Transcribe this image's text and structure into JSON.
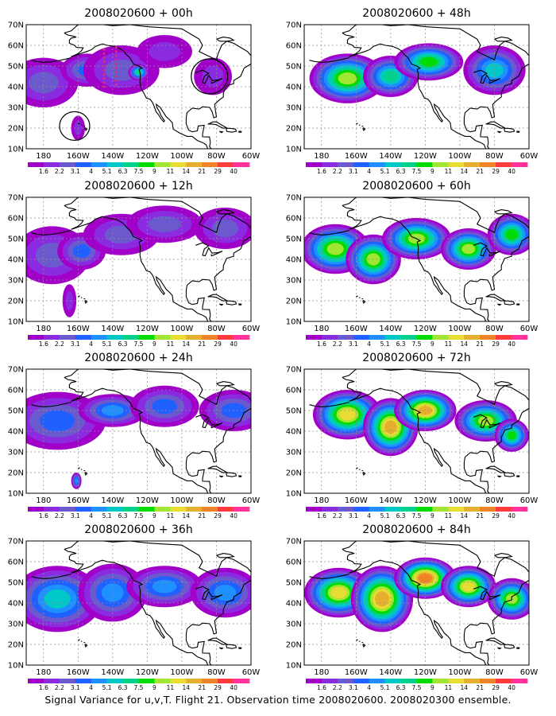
{
  "caption": "Signal Variance for u,v,T. Flight 21. Observation time 2008020600. 2008020300 ensemble.",
  "colorbar": {
    "labels": [
      "1.6",
      "2.2",
      "3.1",
      "4",
      "5.1",
      "6.3",
      "7.5",
      "9",
      "11",
      "14",
      "21",
      "29",
      "40"
    ],
    "colors": [
      "#a000c8",
      "#8a2be2",
      "#6a5acd",
      "#2060ff",
      "#1e90ff",
      "#00c8c8",
      "#00d28c",
      "#00dc00",
      "#a0e632",
      "#e6dc32",
      "#e6af2d",
      "#f08228",
      "#fa3c3c",
      "#ff3399"
    ]
  },
  "map_axes": {
    "x_ticks": [
      "180",
      "160W",
      "140W",
      "120W",
      "100W",
      "80W",
      "60W"
    ],
    "y_ticks": [
      "10N",
      "20N",
      "30N",
      "40N",
      "50N",
      "60N",
      "70N"
    ]
  },
  "chart_data": [
    {
      "type": "heatmap",
      "title": "2008020600 + 00h",
      "lead_hours": 0,
      "max_level_index": 13,
      "xlabels": [
        "180",
        "160W",
        "140W",
        "120W",
        "100W",
        "80W",
        "60W"
      ],
      "ylabels": [
        "10N",
        "20N",
        "30N",
        "40N",
        "50N",
        "60N",
        "70N"
      ],
      "blobs": [
        {
          "lon": -180,
          "lat": 42,
          "rlon": 20,
          "rlat": 12,
          "level": 2
        },
        {
          "lon": -155,
          "lat": 48,
          "rlon": 15,
          "rlat": 8,
          "level": 3
        },
        {
          "lon": -135,
          "lat": 48,
          "rlon": 22,
          "rlat": 12,
          "level": 2
        },
        {
          "lon": -125,
          "lat": 47,
          "rlon": 6,
          "rlat": 4,
          "level": 6
        },
        {
          "lon": -110,
          "lat": 57,
          "rlon": 16,
          "rlat": 8,
          "level": 1
        },
        {
          "lon": -82,
          "lat": 45,
          "rlon": 11,
          "rlat": 9,
          "level": 1
        },
        {
          "lon": -160,
          "lat": 20,
          "rlon": 4,
          "rlat": 6,
          "level": 1
        }
      ]
    },
    {
      "type": "heatmap",
      "title": "2008020600 + 12h",
      "lead_hours": 12,
      "max_level_index": 13,
      "xlabels": [
        "180",
        "160W",
        "140W",
        "120W",
        "100W",
        "80W",
        "60W"
      ],
      "ylabels": [
        "10N",
        "20N",
        "30N",
        "40N",
        "50N",
        "60N",
        "70N"
      ],
      "blobs": [
        {
          "lon": -175,
          "lat": 42,
          "rlon": 22,
          "rlat": 14,
          "level": 2
        },
        {
          "lon": -158,
          "lat": 44,
          "rlon": 14,
          "rlat": 9,
          "level": 3
        },
        {
          "lon": -135,
          "lat": 52,
          "rlon": 22,
          "rlat": 10,
          "level": 2
        },
        {
          "lon": -110,
          "lat": 57,
          "rlon": 22,
          "rlat": 9,
          "level": 2
        },
        {
          "lon": -75,
          "lat": 55,
          "rlon": 18,
          "rlat": 10,
          "level": 2
        },
        {
          "lon": -165,
          "lat": 20,
          "rlon": 4,
          "rlat": 8,
          "level": 1
        }
      ]
    },
    {
      "type": "heatmap",
      "title": "2008020600 + 24h",
      "lead_hours": 24,
      "max_level_index": 13,
      "xlabels": [
        "180",
        "160W",
        "140W",
        "120W",
        "100W",
        "80W",
        "60W"
      ],
      "ylabels": [
        "10N",
        "20N",
        "30N",
        "40N",
        "50N",
        "60N",
        "70N"
      ],
      "blobs": [
        {
          "lon": -172,
          "lat": 45,
          "rlon": 28,
          "rlat": 14,
          "level": 3
        },
        {
          "lon": -140,
          "lat": 50,
          "rlon": 20,
          "rlat": 8,
          "level": 4
        },
        {
          "lon": -110,
          "lat": 52,
          "rlon": 20,
          "rlat": 10,
          "level": 3
        },
        {
          "lon": -70,
          "lat": 50,
          "rlon": 20,
          "rlat": 10,
          "level": 3
        },
        {
          "lon": -161,
          "lat": 16,
          "rlon": 3,
          "rlat": 4,
          "level": 4
        }
      ]
    },
    {
      "type": "heatmap",
      "title": "2008020600 + 36h",
      "lead_hours": 36,
      "max_level_index": 13,
      "xlabels": [
        "180",
        "160W",
        "140W",
        "120W",
        "100W",
        "80W",
        "60W"
      ],
      "ylabels": [
        "10N",
        "20N",
        "30N",
        "40N",
        "50N",
        "60N",
        "70N"
      ],
      "blobs": [
        {
          "lon": -172,
          "lat": 42,
          "rlon": 26,
          "rlat": 16,
          "level": 5
        },
        {
          "lon": -140,
          "lat": 45,
          "rlon": 20,
          "rlat": 14,
          "level": 4
        },
        {
          "lon": -110,
          "lat": 48,
          "rlon": 22,
          "rlat": 10,
          "level": 4
        },
        {
          "lon": -75,
          "lat": 45,
          "rlon": 20,
          "rlat": 12,
          "level": 4
        }
      ]
    },
    {
      "type": "heatmap",
      "title": "2008020600 + 48h",
      "lead_hours": 48,
      "max_level_index": 13,
      "xlabels": [
        "180",
        "160W",
        "140W",
        "120W",
        "100W",
        "80W",
        "60W"
      ],
      "ylabels": [
        "10N",
        "20N",
        "30N",
        "40N",
        "50N",
        "60N",
        "70N"
      ],
      "blobs": [
        {
          "lon": -165,
          "lat": 44,
          "rlon": 22,
          "rlat": 12,
          "level": 8
        },
        {
          "lon": -140,
          "lat": 45,
          "rlon": 16,
          "rlat": 10,
          "level": 6
        },
        {
          "lon": -118,
          "lat": 52,
          "rlon": 20,
          "rlat": 9,
          "level": 7
        },
        {
          "lon": -80,
          "lat": 48,
          "rlon": 18,
          "rlat": 12,
          "level": 5
        }
      ]
    },
    {
      "type": "heatmap",
      "title": "2008020600 + 60h",
      "lead_hours": 60,
      "max_level_index": 13,
      "xlabels": [
        "180",
        "160W",
        "140W",
        "120W",
        "100W",
        "80W",
        "60W"
      ],
      "ylabels": [
        "10N",
        "20N",
        "30N",
        "40N",
        "50N",
        "60N",
        "70N"
      ],
      "blobs": [
        {
          "lon": -172,
          "lat": 45,
          "rlon": 20,
          "rlat": 12,
          "level": 8
        },
        {
          "lon": -150,
          "lat": 40,
          "rlon": 16,
          "rlat": 12,
          "level": 8
        },
        {
          "lon": -125,
          "lat": 50,
          "rlon": 20,
          "rlat": 10,
          "level": 8
        },
        {
          "lon": -95,
          "lat": 45,
          "rlon": 16,
          "rlat": 10,
          "level": 8
        },
        {
          "lon": -70,
          "lat": 52,
          "rlon": 14,
          "rlat": 10,
          "level": 7
        }
      ]
    },
    {
      "type": "heatmap",
      "title": "2008020600 + 72h",
      "lead_hours": 72,
      "max_level_index": 13,
      "xlabels": [
        "180",
        "160W",
        "140W",
        "120W",
        "100W",
        "80W",
        "60W"
      ],
      "ylabels": [
        "10N",
        "20N",
        "30N",
        "40N",
        "50N",
        "60N",
        "70N"
      ],
      "blobs": [
        {
          "lon": -165,
          "lat": 48,
          "rlon": 20,
          "rlat": 12,
          "level": 9
        },
        {
          "lon": -140,
          "lat": 42,
          "rlon": 16,
          "rlat": 14,
          "level": 10
        },
        {
          "lon": -120,
          "lat": 50,
          "rlon": 18,
          "rlat": 10,
          "level": 10
        },
        {
          "lon": -85,
          "lat": 45,
          "rlon": 18,
          "rlat": 10,
          "level": 8
        },
        {
          "lon": -70,
          "lat": 38,
          "rlon": 10,
          "rlat": 8,
          "level": 7
        }
      ]
    },
    {
      "type": "heatmap",
      "title": "2008020600 + 84h",
      "lead_hours": 84,
      "max_level_index": 13,
      "xlabels": [
        "180",
        "160W",
        "140W",
        "120W",
        "100W",
        "80W",
        "60W"
      ],
      "ylabels": [
        "10N",
        "20N",
        "30N",
        "40N",
        "50N",
        "60N",
        "70N"
      ],
      "blobs": [
        {
          "lon": -170,
          "lat": 45,
          "rlon": 20,
          "rlat": 12,
          "level": 9
        },
        {
          "lon": -145,
          "lat": 42,
          "rlon": 18,
          "rlat": 16,
          "level": 10
        },
        {
          "lon": -120,
          "lat": 52,
          "rlon": 18,
          "rlat": 10,
          "level": 11
        },
        {
          "lon": -95,
          "lat": 48,
          "rlon": 16,
          "rlat": 10,
          "level": 9
        },
        {
          "lon": -70,
          "lat": 42,
          "rlon": 14,
          "rlat": 10,
          "level": 8
        }
      ]
    }
  ]
}
